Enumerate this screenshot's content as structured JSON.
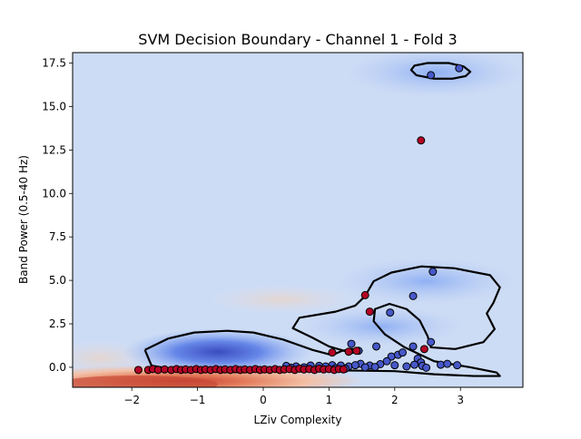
{
  "chart_data": {
    "type": "scatter",
    "title": "SVM Decision Boundary - Channel 1 - Fold 3",
    "xlabel": "LZiv Complexity",
    "ylabel": "Band Power (0.5-40 Hz)",
    "xlim": [
      -2.9,
      3.95
    ],
    "ylim": [
      -1.15,
      18.1
    ],
    "x_ticks": [
      -2,
      -1,
      0,
      1,
      2,
      3
    ],
    "x_tick_labels": [
      "−2",
      "−1",
      "0",
      "1",
      "2",
      "3"
    ],
    "y_ticks": [
      0.0,
      2.5,
      5.0,
      7.5,
      10.0,
      12.5,
      15.0,
      17.5
    ],
    "y_tick_labels": [
      "0.0",
      "2.5",
      "5.0",
      "7.5",
      "10.0",
      "12.5",
      "15.0",
      "17.5"
    ],
    "grid": false,
    "legend": "none",
    "colors": {
      "background_field": "#cddcf5",
      "class_blue": "#4758c9",
      "class_red": "#b40426",
      "boundary": "#000000"
    },
    "series": [
      {
        "color": "#4758c9",
        "points": [
          [
            2.55,
            16.8
          ],
          [
            2.98,
            17.2
          ],
          [
            2.58,
            5.5
          ],
          [
            2.28,
            4.1
          ],
          [
            1.93,
            3.15
          ],
          [
            1.34,
            1.35
          ],
          [
            1.72,
            1.2
          ],
          [
            2.28,
            1.2
          ],
          [
            2.55,
            1.45
          ],
          [
            1.95,
            0.62
          ],
          [
            2.05,
            0.72
          ],
          [
            2.12,
            0.85
          ],
          [
            2.35,
            0.5
          ],
          [
            2.4,
            0.28
          ],
          [
            1.45,
            0.95
          ],
          [
            1.48,
            0.2
          ],
          [
            1.62,
            0.1
          ],
          [
            1.78,
            0.18
          ],
          [
            1.88,
            0.35
          ],
          [
            2.0,
            0.12
          ],
          [
            2.18,
            0.05
          ],
          [
            2.3,
            0.15
          ],
          [
            2.42,
            0.08
          ],
          [
            2.48,
            -0.02
          ],
          [
            2.7,
            0.15
          ],
          [
            2.8,
            0.2
          ],
          [
            2.95,
            0.12
          ],
          [
            1.3,
            0.05
          ],
          [
            1.18,
            0.1
          ],
          [
            1.05,
            0.12
          ],
          [
            0.95,
            0.05
          ],
          [
            0.85,
            0.08
          ],
          [
            0.72,
            0.1
          ],
          [
            0.62,
            0.0
          ],
          [
            0.5,
            0.05
          ],
          [
            0.42,
            -0.02
          ],
          [
            0.35,
            0.08
          ],
          [
            1.1,
            -0.05
          ],
          [
            1.25,
            -0.08
          ],
          [
            1.55,
            0.0
          ],
          [
            1.7,
            0.02
          ],
          [
            1.4,
            0.12
          ]
        ]
      },
      {
        "color": "#b40426",
        "points": [
          [
            2.4,
            13.05
          ],
          [
            1.55,
            4.15
          ],
          [
            1.62,
            3.2
          ],
          [
            2.45,
            1.05
          ],
          [
            1.05,
            0.85
          ],
          [
            1.3,
            0.9
          ],
          [
            1.42,
            0.95
          ],
          [
            -1.9,
            -0.15
          ],
          [
            -1.75,
            -0.15
          ],
          [
            -1.68,
            -0.1
          ],
          [
            -1.6,
            -0.15
          ],
          [
            -1.5,
            -0.12
          ],
          [
            -1.4,
            -0.15
          ],
          [
            -1.32,
            -0.1
          ],
          [
            -1.25,
            -0.15
          ],
          [
            -1.18,
            -0.12
          ],
          [
            -1.1,
            -0.15
          ],
          [
            -1.02,
            -0.1
          ],
          [
            -0.95,
            -0.15
          ],
          [
            -0.88,
            -0.12
          ],
          [
            -0.8,
            -0.15
          ],
          [
            -0.72,
            -0.1
          ],
          [
            -0.65,
            -0.15
          ],
          [
            -0.58,
            -0.12
          ],
          [
            -0.5,
            -0.15
          ],
          [
            -0.42,
            -0.1
          ],
          [
            -0.35,
            -0.15
          ],
          [
            -0.28,
            -0.12
          ],
          [
            -0.2,
            -0.15
          ],
          [
            -0.12,
            -0.1
          ],
          [
            -0.05,
            -0.15
          ],
          [
            0.02,
            -0.12
          ],
          [
            0.1,
            -0.15
          ],
          [
            0.18,
            -0.1
          ],
          [
            0.25,
            -0.15
          ],
          [
            0.32,
            -0.12
          ],
          [
            0.4,
            -0.1
          ],
          [
            0.48,
            -0.15
          ],
          [
            0.55,
            -0.08
          ],
          [
            0.62,
            -0.12
          ],
          [
            0.7,
            -0.1
          ],
          [
            0.78,
            -0.15
          ],
          [
            0.85,
            -0.08
          ],
          [
            0.92,
            -0.12
          ],
          [
            1.0,
            -0.1
          ],
          [
            1.08,
            -0.15
          ],
          [
            1.15,
            -0.1
          ],
          [
            1.22,
            -0.12
          ]
        ]
      }
    ],
    "decision_boundary": [
      [
        [
          2.6,
          16.6
        ],
        [
          2.88,
          16.6
        ],
        [
          3.08,
          16.75
        ],
        [
          3.15,
          17.0
        ],
        [
          3.05,
          17.3
        ],
        [
          2.82,
          17.5
        ],
        [
          2.5,
          17.5
        ],
        [
          2.3,
          17.35
        ],
        [
          2.25,
          17.1
        ],
        [
          2.33,
          16.8
        ],
        [
          2.6,
          16.6
        ]
      ],
      [
        [
          -1.8,
          1.0
        ],
        [
          -1.45,
          1.65
        ],
        [
          -1.05,
          2.0
        ],
        [
          -0.55,
          2.1
        ],
        [
          -0.15,
          2.0
        ],
        [
          0.3,
          1.6
        ],
        [
          0.75,
          1.0
        ],
        [
          1.05,
          0.7
        ],
        [
          1.2,
          0.95
        ],
        [
          1.35,
          1.05
        ],
        [
          1.5,
          0.95
        ],
        [
          1.35,
          0.82
        ],
        [
          1.0,
          1.2
        ],
        [
          0.75,
          1.7
        ],
        [
          0.45,
          2.25
        ],
        [
          0.55,
          2.85
        ],
        [
          1.1,
          3.2
        ],
        [
          1.4,
          3.55
        ],
        [
          1.55,
          4.1
        ],
        [
          1.68,
          4.95
        ],
        [
          1.95,
          5.45
        ],
        [
          2.4,
          5.8
        ],
        [
          2.9,
          5.7
        ],
        [
          3.45,
          5.3
        ],
        [
          3.6,
          4.6
        ],
        [
          3.5,
          3.7
        ],
        [
          3.4,
          3.1
        ],
        [
          3.52,
          2.2
        ],
        [
          3.35,
          1.45
        ],
        [
          2.92,
          1.05
        ],
        [
          2.55,
          1.15
        ],
        [
          2.5,
          1.8
        ],
        [
          2.38,
          2.7
        ],
        [
          2.18,
          3.35
        ],
        [
          1.92,
          3.65
        ],
        [
          1.7,
          3.35
        ],
        [
          1.68,
          2.65
        ],
        [
          1.85,
          1.9
        ],
        [
          2.15,
          1.15
        ],
        [
          2.6,
          0.35
        ],
        [
          3.15,
          0.0
        ],
        [
          3.55,
          -0.3
        ],
        [
          3.6,
          -0.5
        ],
        [
          3.2,
          -0.5
        ],
        [
          2.6,
          -0.4
        ],
        [
          2.0,
          -0.22
        ],
        [
          1.2,
          -0.18
        ],
        [
          0.4,
          -0.22
        ],
        [
          -0.4,
          -0.28
        ],
        [
          -1.2,
          -0.22
        ],
        [
          -1.7,
          0.1
        ],
        [
          -1.8,
          1.0
        ]
      ]
    ]
  }
}
